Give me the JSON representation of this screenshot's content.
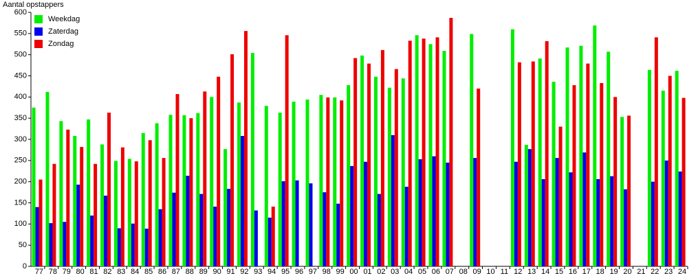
{
  "chart_data": {
    "type": "bar",
    "y_label": "Aantal opstappers",
    "categories": [
      "77",
      "78",
      "79",
      "80",
      "81",
      "82",
      "83",
      "84",
      "85",
      "86",
      "87",
      "88",
      "89",
      "90",
      "91",
      "92",
      "93",
      "94",
      "95",
      "96",
      "97",
      "98",
      "99",
      "00",
      "01",
      "02",
      "03",
      "04",
      "05",
      "06",
      "07",
      "08",
      "09",
      "10",
      "11",
      "12",
      "13",
      "14",
      "15",
      "16",
      "17",
      "18",
      "19",
      "20",
      "21",
      "22",
      "23",
      "24"
    ],
    "series": [
      {
        "name": "Weekdag",
        "color": "#00ee00",
        "values": [
          375,
          412,
          343,
          308,
          347,
          288,
          249,
          254,
          315,
          338,
          358,
          357,
          362,
          400,
          277,
          387,
          504,
          379,
          363,
          389,
          394,
          405,
          399,
          428,
          498,
          448,
          422,
          444,
          546,
          525,
          509,
          null,
          549,
          null,
          null,
          560,
          287,
          491,
          436,
          517,
          521,
          569,
          507,
          353,
          null,
          464,
          415,
          462
        ]
      },
      {
        "name": "Zaterdag",
        "color": "#0000ee",
        "values": [
          140,
          102,
          105,
          193,
          120,
          167,
          90,
          101,
          89,
          135,
          174,
          214,
          171,
          141,
          183,
          308,
          132,
          115,
          201,
          203,
          196,
          175,
          148,
          237,
          247,
          171,
          310,
          188,
          253,
          260,
          245,
          null,
          256,
          null,
          null,
          247,
          277,
          206,
          256,
          222,
          269,
          206,
          213,
          182,
          null,
          200,
          250,
          224
        ]
      },
      {
        "name": "Zondag",
        "color": "#ee0000",
        "values": [
          205,
          242,
          323,
          282,
          242,
          363,
          281,
          248,
          298,
          256,
          407,
          350,
          413,
          448,
          501,
          556,
          null,
          141,
          546,
          null,
          null,
          399,
          392,
          492,
          479,
          511,
          466,
          533,
          538,
          541,
          587,
          null,
          420,
          null,
          null,
          482,
          484,
          532,
          330,
          428,
          479,
          433,
          400,
          356,
          null,
          541,
          450,
          398
        ]
      }
    ],
    "ylim": [
      0,
      600
    ],
    "yticks": [
      0,
      50,
      100,
      150,
      200,
      250,
      300,
      350,
      400,
      450,
      500,
      550,
      600
    ],
    "legend": "top-left"
  }
}
